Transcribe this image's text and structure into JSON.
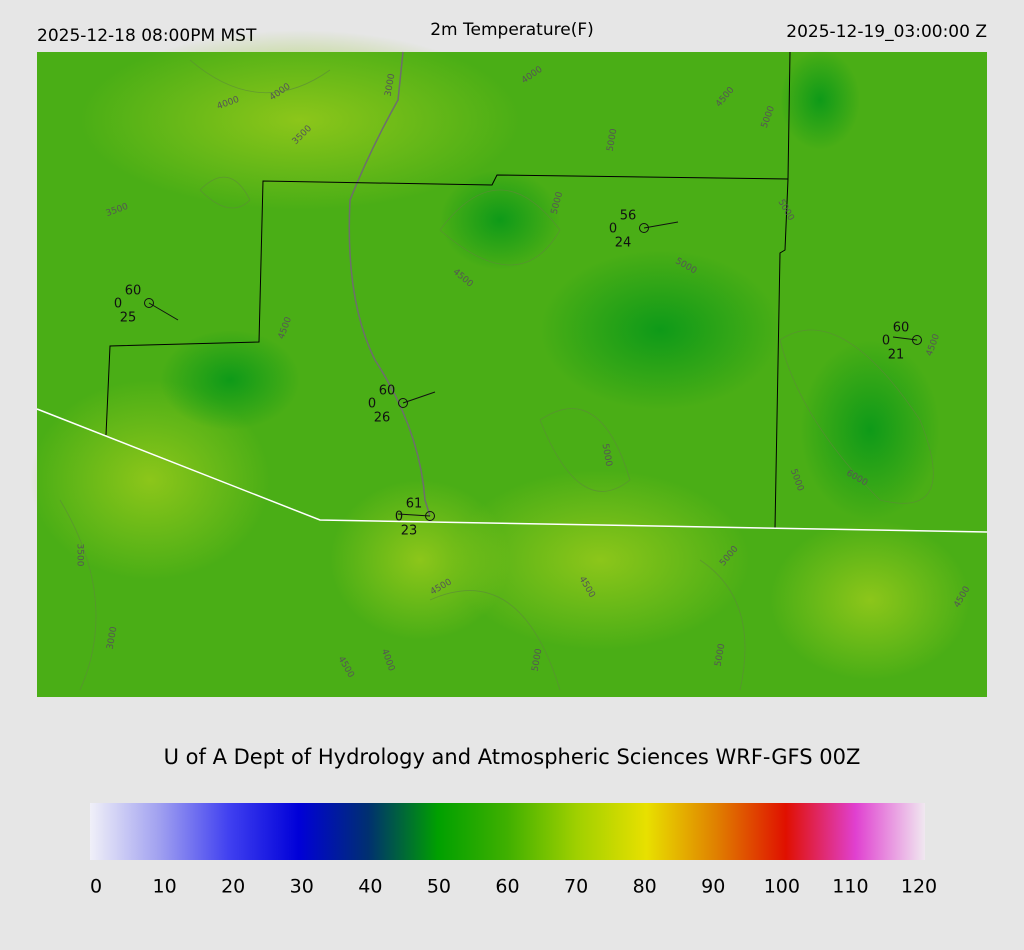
{
  "header": {
    "left": "2025-12-18 08:00PM MST",
    "title": "2m Temperature(F)",
    "right": "2025-12-19_03:00:00 Z"
  },
  "stations": [
    {
      "top": "60",
      "left": "0",
      "bottom": "25"
    },
    {
      "top": "56",
      "left": "0",
      "bottom": "24"
    },
    {
      "top": "60",
      "left": "0",
      "bottom": "21"
    },
    {
      "top": "60",
      "left": "0",
      "bottom": "26"
    },
    {
      "top": "61",
      "left": "0",
      "bottom": "23"
    }
  ],
  "contour_labels": [
    "4000",
    "4000",
    "3500",
    "3000",
    "4000",
    "4500",
    "5000",
    "5000",
    "3500",
    "5000",
    "4500",
    "4500",
    "5000",
    "5000",
    "5000",
    "5000",
    "6000",
    "4500",
    "3500",
    "4500",
    "4500",
    "5000",
    "3000",
    "4000",
    "4500",
    "5000",
    "5000",
    "4500"
  ],
  "footer": "U of A Dept of Hydrology and Atmospheric Sciences WRF-GFS 00Z",
  "colorbar": {
    "min": 0,
    "max": 120,
    "ticks": [
      0,
      10,
      20,
      30,
      40,
      50,
      60,
      70,
      80,
      90,
      100,
      110,
      120
    ],
    "colors": [
      "#f0f0f8",
      "#a0a0f0",
      "#4040f0",
      "#0000d8",
      "#003070",
      "#00a000",
      "#40b000",
      "#a0d000",
      "#e8e000",
      "#e08000",
      "#e01000",
      "#e040d0",
      "#f0e8f0"
    ]
  }
}
